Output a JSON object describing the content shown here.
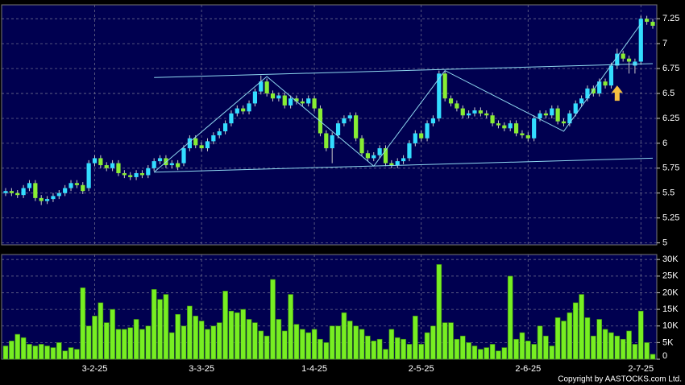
{
  "chart_data": {
    "type": "candlestick",
    "categories": [
      null,
      null,
      null,
      null,
      null,
      null,
      null,
      null,
      null,
      null,
      null,
      null,
      null,
      null,
      null,
      "3-2-25",
      null,
      null,
      null,
      null,
      null,
      null,
      null,
      null,
      null,
      null,
      null,
      null,
      null,
      null,
      null,
      null,
      null,
      "3-3-25",
      null,
      null,
      null,
      null,
      null,
      null,
      null,
      null,
      null,
      null,
      null,
      null,
      null,
      null,
      null,
      null,
      null,
      null,
      "1-4-25",
      null,
      null,
      null,
      null,
      null,
      null,
      null,
      null,
      null,
      null,
      null,
      null,
      null,
      null,
      null,
      null,
      null,
      "2-5-25",
      null,
      null,
      null,
      null,
      null,
      null,
      null,
      null,
      null,
      null,
      null,
      null,
      null,
      null,
      null,
      null,
      null,
      "2-6-25",
      null,
      null,
      null,
      null,
      null,
      null,
      null,
      null,
      null,
      null,
      null,
      null,
      null,
      null,
      null,
      null,
      null,
      null,
      "2-7-25",
      null,
      null
    ],
    "open": [
      5.5,
      5.52,
      5.5,
      5.48,
      5.55,
      5.6,
      5.45,
      5.42,
      5.44,
      5.47,
      5.5,
      5.55,
      5.6,
      5.58,
      5.55,
      5.8,
      5.85,
      5.78,
      5.75,
      5.8,
      5.7,
      5.68,
      5.66,
      5.7,
      5.68,
      5.75,
      5.82,
      5.85,
      5.78,
      5.8,
      5.8,
      5.95,
      6.05,
      5.98,
      5.95,
      6.02,
      6.08,
      6.12,
      6.2,
      6.3,
      6.35,
      6.32,
      6.4,
      6.52,
      6.62,
      6.5,
      6.45,
      6.48,
      6.38,
      6.45,
      6.42,
      6.4,
      6.45,
      6.35,
      6.1,
      5.95,
      6.08,
      6.2,
      6.25,
      6.28,
      6.05,
      5.9,
      5.85,
      5.88,
      5.95,
      5.8,
      5.78,
      5.82,
      5.85,
      6.0,
      6.1,
      6.05,
      6.2,
      6.25,
      6.7,
      6.45,
      6.4,
      6.35,
      6.28,
      6.3,
      6.33,
      6.3,
      6.28,
      6.2,
      6.18,
      6.15,
      6.2,
      6.1,
      6.08,
      6.05,
      6.25,
      6.3,
      6.28,
      6.35,
      6.22,
      6.2,
      6.3,
      6.4,
      6.45,
      6.55,
      6.5,
      6.62,
      6.58,
      6.78,
      6.9,
      6.85,
      6.78,
      6.82,
      7.25,
      7.22
    ],
    "high": [
      5.55,
      5.55,
      5.53,
      5.58,
      5.63,
      5.63,
      5.48,
      5.47,
      5.5,
      5.53,
      5.58,
      5.63,
      5.63,
      5.61,
      5.83,
      5.88,
      5.88,
      5.81,
      5.83,
      5.83,
      5.73,
      5.71,
      5.73,
      5.73,
      5.78,
      5.85,
      5.88,
      5.88,
      5.83,
      5.83,
      5.98,
      6.08,
      6.08,
      6.01,
      6.05,
      6.11,
      6.15,
      6.23,
      6.33,
      6.38,
      6.38,
      6.43,
      6.55,
      6.68,
      6.65,
      6.53,
      6.51,
      6.51,
      6.48,
      6.48,
      6.45,
      6.48,
      6.48,
      6.38,
      6.13,
      6.11,
      6.23,
      6.28,
      6.31,
      6.31,
      6.08,
      5.93,
      5.91,
      5.98,
      5.98,
      5.83,
      5.85,
      5.88,
      6.03,
      6.13,
      6.13,
      6.23,
      6.28,
      6.73,
      6.73,
      6.48,
      6.43,
      6.38,
      6.33,
      6.36,
      6.36,
      6.33,
      6.31,
      6.23,
      6.21,
      6.23,
      6.23,
      6.13,
      6.11,
      6.28,
      6.33,
      6.33,
      6.38,
      6.38,
      6.25,
      6.33,
      6.43,
      6.48,
      6.58,
      6.58,
      6.65,
      6.65,
      6.81,
      6.95,
      6.93,
      6.88,
      6.85,
      7.28,
      7.28,
      7.25
    ],
    "low": [
      5.47,
      5.47,
      5.45,
      5.45,
      5.52,
      5.42,
      5.38,
      5.39,
      5.41,
      5.44,
      5.47,
      5.52,
      5.55,
      5.49,
      5.52,
      5.77,
      5.75,
      5.72,
      5.72,
      5.67,
      5.65,
      5.63,
      5.63,
      5.65,
      5.65,
      5.72,
      5.79,
      5.75,
      5.75,
      5.73,
      5.77,
      5.92,
      5.95,
      5.92,
      5.92,
      5.99,
      6.05,
      6.09,
      6.17,
      6.27,
      6.29,
      6.29,
      6.37,
      6.49,
      6.47,
      6.42,
      6.42,
      6.35,
      6.35,
      6.39,
      6.37,
      6.37,
      6.32,
      6.07,
      5.92,
      5.8,
      6.05,
      6.17,
      6.22,
      6.02,
      5.87,
      5.82,
      5.82,
      5.85,
      5.77,
      5.75,
      5.75,
      5.79,
      5.82,
      5.97,
      6.02,
      6.02,
      6.17,
      6.22,
      6.42,
      6.37,
      6.32,
      6.25,
      6.25,
      6.27,
      6.27,
      6.25,
      6.17,
      6.15,
      6.12,
      6.12,
      6.07,
      6.05,
      6.02,
      6.02,
      6.22,
      6.25,
      6.25,
      6.19,
      6.17,
      6.17,
      6.27,
      6.37,
      6.42,
      6.47,
      6.47,
      6.55,
      6.55,
      6.75,
      6.82,
      6.7,
      6.7,
      6.79,
      7.19,
      7.15
    ],
    "close": [
      5.52,
      5.5,
      5.48,
      5.55,
      5.6,
      5.45,
      5.42,
      5.44,
      5.47,
      5.5,
      5.55,
      5.6,
      5.58,
      5.52,
      5.8,
      5.85,
      5.78,
      5.75,
      5.8,
      5.7,
      5.68,
      5.66,
      5.7,
      5.68,
      5.75,
      5.82,
      5.85,
      5.78,
      5.8,
      5.76,
      5.95,
      6.05,
      5.98,
      5.95,
      6.02,
      6.08,
      6.12,
      6.2,
      6.3,
      6.35,
      6.32,
      6.4,
      6.52,
      6.62,
      6.5,
      6.45,
      6.48,
      6.38,
      6.45,
      6.42,
      6.4,
      6.45,
      6.35,
      6.1,
      5.95,
      6.08,
      6.2,
      6.25,
      6.28,
      6.05,
      5.9,
      5.85,
      5.88,
      5.95,
      5.8,
      5.78,
      5.82,
      5.85,
      6.0,
      6.1,
      6.05,
      6.2,
      6.25,
      6.7,
      6.45,
      6.4,
      6.35,
      6.28,
      6.3,
      6.33,
      6.3,
      6.28,
      6.2,
      6.18,
      6.15,
      6.2,
      6.1,
      6.08,
      6.05,
      6.25,
      6.3,
      6.28,
      6.35,
      6.22,
      6.2,
      6.3,
      6.4,
      6.45,
      6.55,
      6.5,
      6.62,
      6.58,
      6.78,
      6.9,
      6.85,
      6.82,
      6.82,
      7.25,
      7.22,
      7.18
    ],
    "up_color": "#33ddff",
    "down_color": "#88ee33",
    "ylim": [
      4.98,
      7.39
    ],
    "yticks": [
      5,
      5.25,
      5.5,
      5.75,
      6,
      6.25,
      6.5,
      6.75,
      7,
      7.25
    ],
    "grid": true,
    "trendlines": [
      {
        "x": [
          25,
          109
        ],
        "y": [
          5.71,
          5.85
        ]
      },
      {
        "x": [
          25,
          109
        ],
        "y": [
          6.66,
          6.8
        ]
      },
      {
        "x": [
          25,
          44,
          62,
          74,
          94,
          107
        ],
        "y": [
          5.71,
          6.67,
          5.77,
          6.73,
          6.12,
          7.2
        ]
      }
    ],
    "trendline_color": "#8fd8f0",
    "arrow": {
      "x": 103,
      "y": 6.58,
      "color": "#f5c040"
    },
    "volume": {
      "type": "bar",
      "color": "#77ee22",
      "values": [
        4000,
        5500,
        7500,
        6500,
        4500,
        4000,
        4500,
        4000,
        3500,
        5000,
        2500,
        3500,
        3000,
        21500,
        10000,
        13000,
        17000,
        11000,
        15000,
        9000,
        9000,
        9500,
        12000,
        9000,
        10000,
        21000,
        18000,
        19500,
        8000,
        13500,
        10000,
        16000,
        13000,
        11500,
        9000,
        10000,
        11000,
        20500,
        14500,
        14000,
        15000,
        12000,
        11000,
        8500,
        7000,
        24000,
        12000,
        8500,
        19500,
        10500,
        9000,
        8000,
        9000,
        6000,
        5000,
        10000,
        10000,
        14000,
        11500,
        10000,
        9000,
        7000,
        5500,
        6000,
        3000,
        9000,
        6500,
        6000,
        4500,
        13000,
        4500,
        8000,
        10000,
        28500,
        11000,
        11000,
        6000,
        7000,
        5000,
        4000,
        3000,
        3500,
        4500,
        2500,
        3500,
        25000,
        6000,
        8000,
        5500,
        4500,
        10000,
        7000,
        4000,
        12500,
        11500,
        14000,
        17000,
        19500,
        12500,
        7000,
        12000,
        9000,
        8000,
        7000,
        6000,
        8500,
        4500,
        14500,
        5000,
        1500
      ],
      "ylim": [
        0,
        31500
      ],
      "yticks": [
        0,
        {
          "value": 5000,
          "label": "5K"
        },
        {
          "value": 10000,
          "label": "10K"
        },
        {
          "value": 15000,
          "label": "15K"
        },
        {
          "value": 20000,
          "label": "20K"
        },
        {
          "value": 25000,
          "label": "25K"
        },
        {
          "value": 30000,
          "label": "30K"
        }
      ]
    }
  },
  "copyright": "Copyright by AASTOCKS.com Ltd."
}
